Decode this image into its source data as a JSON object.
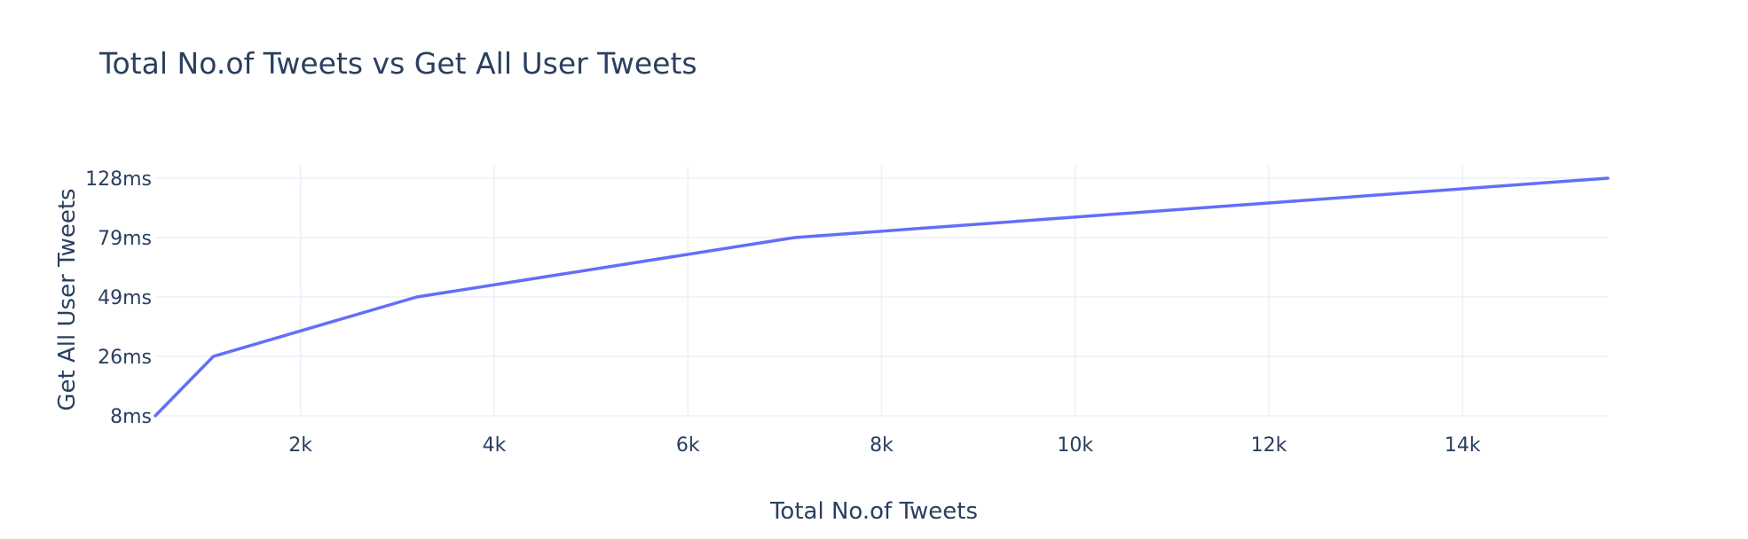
{
  "chart_data": {
    "type": "line",
    "title": "Total No.of Tweets vs Get All User Tweets",
    "xlabel": "Total No.of Tweets",
    "ylabel": "Get All User Tweets",
    "x_range": [
      500,
      15500
    ],
    "x_ticks": [
      2000,
      4000,
      6000,
      8000,
      10000,
      12000,
      14000
    ],
    "x_tick_labels": [
      "2k",
      "4k",
      "6k",
      "8k",
      "10k",
      "12k",
      "14k"
    ],
    "y_categories": [
      "8ms",
      "26ms",
      "49ms",
      "79ms",
      "128ms"
    ],
    "grid": true,
    "series": [
      {
        "x": [
          500,
          1100,
          3200,
          7100,
          15500
        ],
        "y": [
          "8ms",
          "26ms",
          "49ms",
          "79ms",
          "128ms"
        ],
        "color": "#636efa"
      }
    ]
  },
  "colors": {
    "line": "#636efa",
    "grid": "#ebf0f8",
    "text": "#2a3f5f"
  }
}
